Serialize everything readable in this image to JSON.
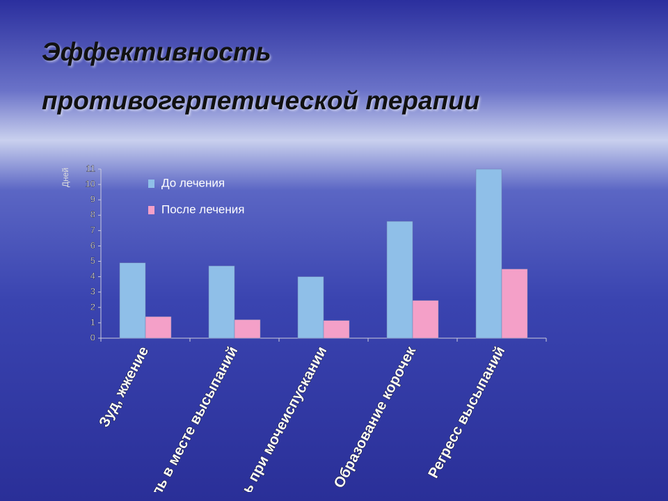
{
  "chart_data": {
    "type": "bar",
    "title": "Эффективность противогерпетической терапии",
    "y_label": "Дней",
    "categories": [
      "Зуд, жжение",
      "Боль в месте высыпаний",
      "Боль при мочеиспускании",
      "Образование корочек",
      "Регресс высыпаний"
    ],
    "series": [
      {
        "name": "До лечения",
        "color": "#8fbfe8",
        "values": [
          4.9,
          4.7,
          4.0,
          7.6,
          11
        ]
      },
      {
        "name": "После лечения",
        "color": "#f4a0c8",
        "values": [
          1.4,
          1.2,
          1.15,
          2.45,
          4.5
        ]
      }
    ],
    "ylim": [
      0,
      11
    ],
    "yticks": [
      0,
      1,
      2,
      3,
      4,
      5,
      6,
      7,
      8,
      9,
      10,
      11
    ],
    "legend": "top-left"
  }
}
